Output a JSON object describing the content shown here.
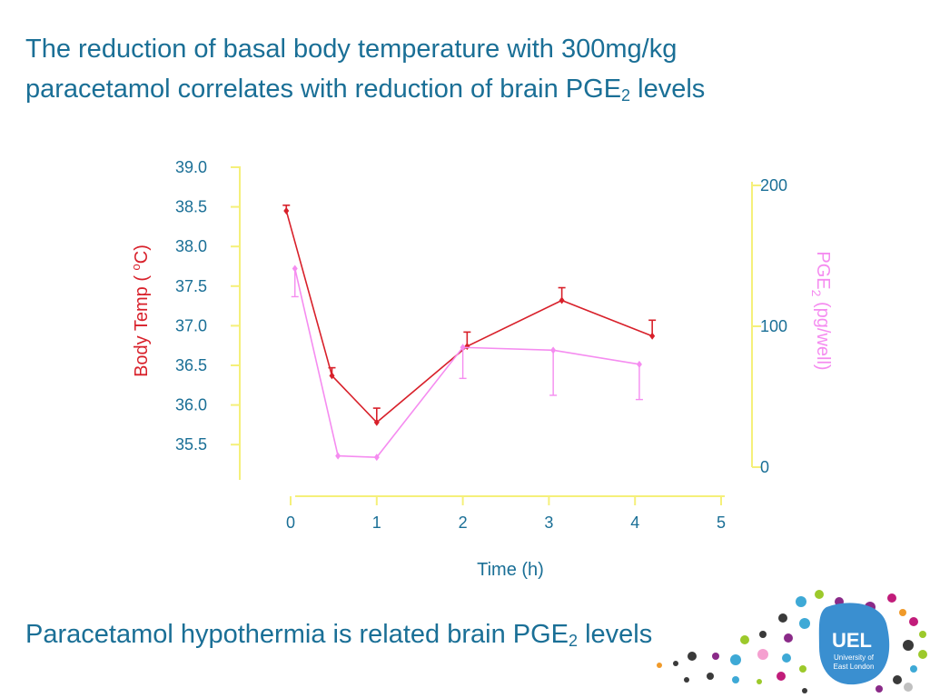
{
  "slide": {
    "title_line1": "The reduction of basal body temperature with 300mg/kg",
    "title_line2_pre": "paracetamol correlates with reduction of brain PGE",
    "title_line2_sub": "2",
    "title_line2_post": " levels",
    "bottom_pre": "Paracetamol hypothermia is related brain PGE",
    "bottom_sub": "2",
    "bottom_post": " levels"
  },
  "logo": {
    "text": "UEL",
    "subtext_line1": "University of",
    "subtext_line2": "East London"
  },
  "colors": {
    "text": "#1a6f96",
    "axis": "#f5f07a",
    "temp": "#d8202a",
    "pge": "#f58cf0",
    "logo_bg": "#3a8fd0"
  },
  "chart_data": {
    "type": "line",
    "xlabel": "Time (h)",
    "x_ticks": [
      0,
      1,
      2,
      3,
      4,
      5
    ],
    "xlim": [
      0,
      5
    ],
    "y_left": {
      "label_main": "Body Temp ( ",
      "label_deg": "o",
      "label_end": "C)",
      "ticks": [
        "39.0",
        "38.5",
        "38.0",
        "37.5",
        "37.0",
        "36.5",
        "36.0",
        "35.5"
      ],
      "lim": [
        35.0,
        39.0
      ]
    },
    "y_right": {
      "label_main": "PGE",
      "label_sub": "2",
      "label_end": " (pg/well)",
      "ticks": [
        "200",
        "100",
        "0"
      ],
      "lim": [
        0,
        200
      ]
    },
    "series": [
      {
        "axis": "left",
        "color": "#d8202a",
        "points": [
          {
            "x": -0.05,
            "y": 38.45,
            "err": 0.07
          },
          {
            "x": 0.48,
            "y": 36.37,
            "err": 0.1
          },
          {
            "x": 1.0,
            "y": 35.78,
            "err": 0.18
          },
          {
            "x": 2.05,
            "y": 36.74,
            "err": 0.18
          },
          {
            "x": 3.15,
            "y": 37.32,
            "err": 0.16
          },
          {
            "x": 4.2,
            "y": 36.87,
            "err": 0.2
          }
        ]
      },
      {
        "axis": "right",
        "color": "#f58cf0",
        "points": [
          {
            "x": 0.05,
            "y": 141,
            "err": 20
          },
          {
            "x": 0.55,
            "y": 8,
            "err": 0
          },
          {
            "x": 1.0,
            "y": 7,
            "err": 0
          },
          {
            "x": 2.0,
            "y": 85,
            "err": 22
          },
          {
            "x": 3.05,
            "y": 83,
            "err": 32
          },
          {
            "x": 4.05,
            "y": 73,
            "err": 25
          }
        ]
      }
    ]
  }
}
